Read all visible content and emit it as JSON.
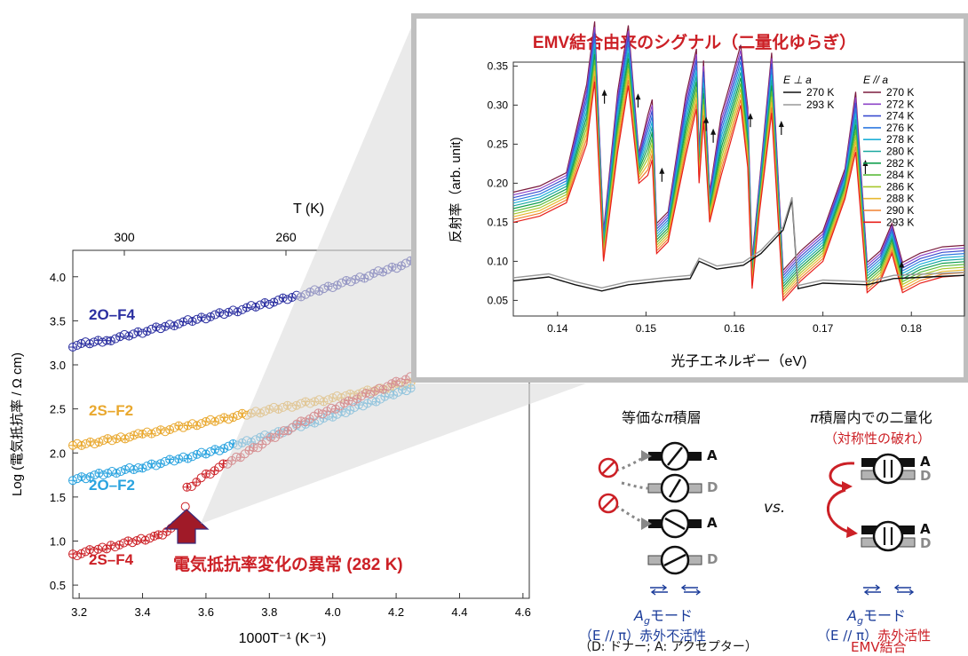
{
  "chart_data": [
    {
      "type": "scatter",
      "id": "resistivity",
      "xlabel": "1000T⁻¹ (K⁻¹)",
      "ylabel": "Log (電気抵抗率 / Ω cm)",
      "top_axis_label": "T (K)",
      "top_axis_ticks": [
        300,
        260
      ],
      "xlim": [
        3.18,
        4.62
      ],
      "ylim": [
        0.35,
        4.3
      ],
      "xticks": [
        3.2,
        3.4,
        3.6,
        3.8,
        4.0,
        4.2,
        4.4,
        4.6
      ],
      "yticks": [
        0.5,
        1.0,
        1.5,
        2.0,
        2.5,
        3.0,
        3.5,
        4.0
      ],
      "series": [
        {
          "name": "2O–F4",
          "color": "#2b2fa0",
          "x": [
            3.18,
            3.3,
            3.5,
            3.7,
            3.9,
            4.1,
            4.26
          ],
          "y": [
            3.22,
            3.29,
            3.46,
            3.62,
            3.79,
            4.0,
            4.18
          ]
        },
        {
          "name": "2S–F2",
          "color": "#e9a82e",
          "x": [
            3.18,
            3.4,
            3.6,
            3.8,
            4.0,
            4.26
          ],
          "y": [
            2.08,
            2.21,
            2.35,
            2.49,
            2.62,
            2.8
          ]
        },
        {
          "name": "2O–F2",
          "color": "#2aa3df",
          "x": [
            3.18,
            3.4,
            3.6,
            3.8,
            4.0,
            4.26
          ],
          "y": [
            1.7,
            1.84,
            2.0,
            2.2,
            2.42,
            2.76
          ]
        },
        {
          "name": "2S–F4",
          "color": "#cc2026",
          "x": [
            3.18,
            3.3,
            3.45,
            3.53,
            3.54,
            3.6,
            3.75,
            3.9,
            4.05,
            4.2,
            4.26
          ],
          "y": [
            0.84,
            0.94,
            1.06,
            1.22,
            1.6,
            1.75,
            2.05,
            2.35,
            2.58,
            2.8,
            2.88
          ]
        }
      ],
      "annotation": {
        "text": "電気抵抗率変化の異常 (282 K)",
        "x": 3.51
      }
    },
    {
      "type": "line",
      "id": "reflectivity",
      "title": "EMV結合由来のシグナル（二量化ゆらぎ）",
      "xlabel": "光子エネルギー（eV)",
      "ylabel": "反射率（arb. unit)",
      "xlim": [
        0.135,
        0.186
      ],
      "ylim": [
        0.03,
        0.355
      ],
      "xticks": [
        0.14,
        0.15,
        0.16,
        0.17,
        0.18
      ],
      "yticks": [
        0.05,
        0.1,
        0.15,
        0.2,
        0.25,
        0.3,
        0.35
      ],
      "legend_perp_title": "E ⊥ a",
      "legend_par_title": "E // a",
      "perp_series": [
        {
          "name": "270 K",
          "color": "#111111"
        },
        {
          "name": "293 K",
          "color": "#999999"
        }
      ],
      "par_series": [
        {
          "name": "270 K",
          "color": "#7b1c3e"
        },
        {
          "name": "272 K",
          "color": "#8e44c8"
        },
        {
          "name": "274 K",
          "color": "#3c4ed0"
        },
        {
          "name": "276 K",
          "color": "#2f7ae0"
        },
        {
          "name": "278 K",
          "color": "#20b0d8"
        },
        {
          "name": "280 K",
          "color": "#1aa8a0"
        },
        {
          "name": "282 K",
          "color": "#14a050"
        },
        {
          "name": "284 K",
          "color": "#5cbc3c"
        },
        {
          "name": "286 K",
          "color": "#a8c82c"
        },
        {
          "name": "288 K",
          "color": "#e8b830"
        },
        {
          "name": "290 K",
          "color": "#f08030"
        },
        {
          "name": "293 K",
          "color": "#e8201c"
        }
      ],
      "par_peak_x": [
        0.1442,
        0.148,
        0.1507,
        0.1557,
        0.1565,
        0.1607,
        0.1642,
        0.1737,
        0.1778
      ],
      "par_peak_y": [
        0.33,
        0.325,
        0.23,
        0.295,
        0.28,
        0.3,
        0.29,
        0.24,
        0.11
      ],
      "par_points": [
        [
          0.135,
          0.15
        ],
        [
          0.138,
          0.158
        ],
        [
          0.141,
          0.175
        ],
        [
          0.1433,
          0.25
        ],
        [
          0.1442,
          0.33
        ],
        [
          0.1452,
          0.1
        ],
        [
          0.1468,
          0.24
        ],
        [
          0.148,
          0.325
        ],
        [
          0.1492,
          0.2
        ],
        [
          0.1502,
          0.21
        ],
        [
          0.1507,
          0.23
        ],
        [
          0.1512,
          0.11
        ],
        [
          0.1525,
          0.125
        ],
        [
          0.1545,
          0.235
        ],
        [
          0.1557,
          0.295
        ],
        [
          0.156,
          0.2
        ],
        [
          0.1565,
          0.28
        ],
        [
          0.1572,
          0.15
        ],
        [
          0.1585,
          0.21
        ],
        [
          0.1595,
          0.25
        ],
        [
          0.1607,
          0.3
        ],
        [
          0.1615,
          0.22
        ],
        [
          0.162,
          0.065
        ],
        [
          0.1628,
          0.16
        ],
        [
          0.1642,
          0.29
        ],
        [
          0.1655,
          0.05
        ],
        [
          0.1675,
          0.075
        ],
        [
          0.17,
          0.1
        ],
        [
          0.1725,
          0.18
        ],
        [
          0.1737,
          0.24
        ],
        [
          0.175,
          0.06
        ],
        [
          0.1765,
          0.075
        ],
        [
          0.1778,
          0.11
        ],
        [
          0.179,
          0.06
        ],
        [
          0.181,
          0.072
        ],
        [
          0.1835,
          0.08
        ],
        [
          0.186,
          0.082
        ]
      ],
      "perp_points": [
        [
          0.135,
          0.075
        ],
        [
          0.139,
          0.08
        ],
        [
          0.142,
          0.07
        ],
        [
          0.145,
          0.062
        ],
        [
          0.148,
          0.07
        ],
        [
          0.152,
          0.075
        ],
        [
          0.155,
          0.078
        ],
        [
          0.156,
          0.1
        ],
        [
          0.158,
          0.09
        ],
        [
          0.161,
          0.095
        ],
        [
          0.163,
          0.11
        ],
        [
          0.1655,
          0.14
        ],
        [
          0.1665,
          0.178
        ],
        [
          0.1672,
          0.065
        ],
        [
          0.17,
          0.072
        ],
        [
          0.175,
          0.07
        ],
        [
          0.178,
          0.078
        ],
        [
          0.182,
          0.08
        ],
        [
          0.186,
          0.082
        ]
      ]
    }
  ],
  "diagram": {
    "left_title": "等価な",
    "left_title_pi": "π",
    "left_title_end": "積層",
    "right_title_pi": "π",
    "right_title": "積層内での二量化",
    "right_subtitle": "（対称性の破れ）",
    "vs": "vs.",
    "label_a": "A",
    "label_d": "D",
    "mode_prefix": "A",
    "mode_sub": "g",
    "mode_suffix": "モード",
    "left_cond": "（E // π）",
    "left_activity": "赤外不活性",
    "right_cond": "（E // π）",
    "right_activity": "赤外活性",
    "legend_note": "（D: ドナー; A: アクセプター）",
    "emv": "EMV結合",
    "colors": {
      "blue": "#1b3c9a",
      "red": "#cc2026",
      "gray": "#8a8a8a"
    }
  }
}
